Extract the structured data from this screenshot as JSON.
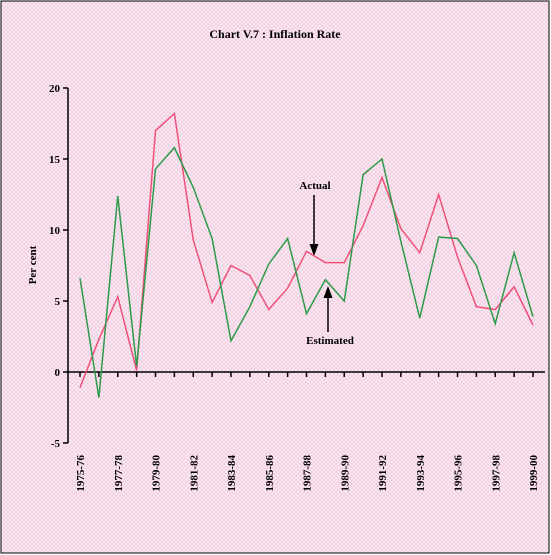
{
  "chart_data": {
    "type": "line",
    "title": "Chart V.7 : Inflation Rate",
    "ylabel": "Per cent",
    "categories": [
      "1975-76",
      null,
      "1977-78",
      null,
      "1979-80",
      null,
      "1981-82",
      null,
      "1983-84",
      null,
      "1985-86",
      null,
      "1987-88",
      null,
      "1989-90",
      null,
      "1991-92",
      null,
      "1993-94",
      null,
      "1995-96",
      null,
      "1997-98",
      null,
      "1999-00"
    ],
    "series": [
      {
        "name": "Actual",
        "color": "#f0507a",
        "values": [
          -1.1,
          2.3,
          5.3,
          0.1,
          17.0,
          18.2,
          9.3,
          4.9,
          7.5,
          6.8,
          4.4,
          5.9,
          8.5,
          7.7,
          7.7,
          10.3,
          13.7,
          10.1,
          8.4,
          12.5,
          8.1,
          4.6,
          4.4,
          6.0,
          3.3
        ]
      },
      {
        "name": "Estimated",
        "color": "#2e9a4a",
        "values": [
          6.6,
          -1.8,
          12.4,
          0.4,
          14.3,
          15.8,
          13.0,
          9.4,
          2.2,
          4.6,
          7.6,
          9.4,
          4.1,
          6.5,
          5.0,
          13.9,
          15.0,
          9.2,
          3.8,
          9.5,
          9.4,
          7.5,
          3.4,
          8.4,
          3.9
        ]
      }
    ],
    "ylim": [
      -5,
      20
    ],
    "yticks": [
      -5,
      0,
      5,
      10,
      15,
      20
    ]
  }
}
